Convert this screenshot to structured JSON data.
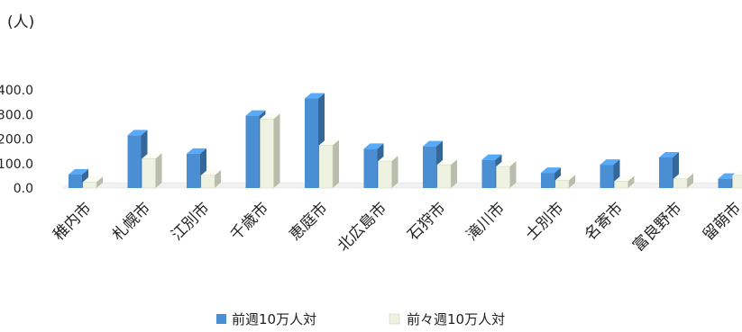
{
  "chart_data": {
    "type": "bar",
    "unit_label": "(人)",
    "categories": [
      "稚内市",
      "札幌市",
      "江別市",
      "千歳市",
      "恵庭市",
      "北広島市",
      "石狩市",
      "滝川市",
      "士別市",
      "名寄市",
      "富良野市",
      "留萌市"
    ],
    "series": [
      {
        "name": "前週10万人対",
        "color": "#4a8fd4",
        "values": [
          55,
          215,
          140,
          295,
          365,
          160,
          170,
          115,
          62,
          95,
          125,
          38
        ]
      },
      {
        "name": "前々週10万人対",
        "color": "#eef2e0",
        "values": [
          25,
          120,
          52,
          282,
          175,
          110,
          95,
          88,
          32,
          28,
          38,
          52
        ]
      }
    ],
    "y_tick_labels": [
      "0.0",
      "100.0",
      "200.0",
      "300.0",
      "400.0"
    ],
    "ylim": [
      0,
      400
    ],
    "legend_position": "bottom",
    "grid": false,
    "style": "3d-bar"
  }
}
